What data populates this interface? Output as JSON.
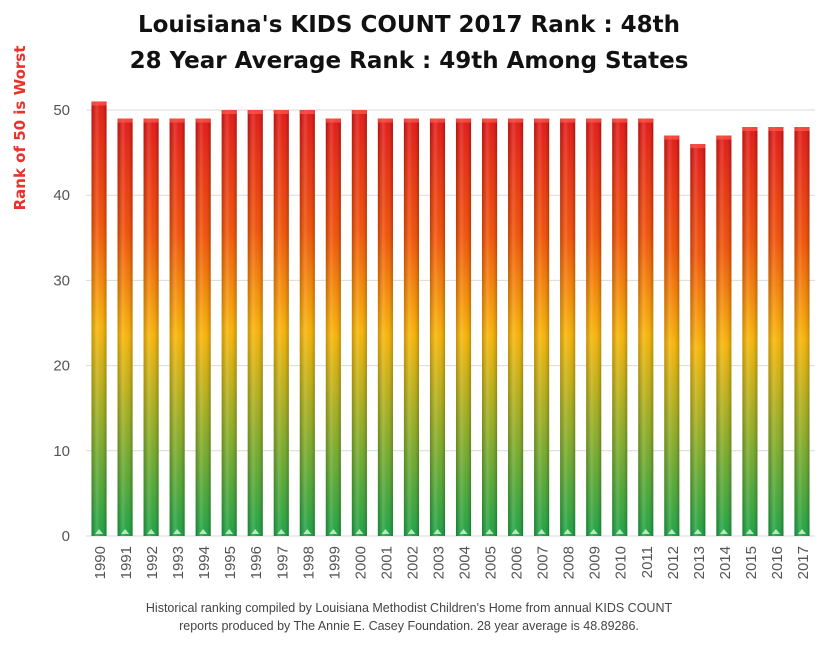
{
  "chart_data": {
    "type": "bar",
    "title": "Louisiana's KIDS COUNT 2017 Rank : 48th",
    "subtitle": "28 Year Average Rank :  49th Among States",
    "xlabel": "",
    "ylabel": "Rank of 50 is Worst",
    "ylim": [
      0,
      50
    ],
    "yticks": [
      0,
      10,
      20,
      30,
      40,
      50
    ],
    "grid": true,
    "categories": [
      "1990",
      "1991",
      "1992",
      "1993",
      "1994",
      "1995",
      "1996",
      "1997",
      "1998",
      "1999",
      "2000",
      "2001",
      "2002",
      "2003",
      "2004",
      "2005",
      "2006",
      "2007",
      "2008",
      "2009",
      "2010",
      "2011",
      "2012",
      "2013",
      "2014",
      "2015",
      "2016",
      "2017"
    ],
    "values": [
      51,
      49,
      49,
      49,
      49,
      50,
      50,
      50,
      50,
      49,
      50,
      49,
      49,
      49,
      49,
      49,
      49,
      49,
      49,
      49,
      49,
      49,
      47,
      46,
      47,
      48,
      48,
      48
    ],
    "colors": {
      "top": "#e01010",
      "upper": "#f04d00",
      "middle": "#f7b200",
      "bottom": "#15a040",
      "grid": "#d9d9d9"
    }
  },
  "footnote": {
    "line1": "Historical ranking compiled by Louisiana Methodist Children's Home from annual KIDS COUNT",
    "line2": "reports produced by The Annie E. Casey Foundation.  28 year average is 48.89286."
  }
}
